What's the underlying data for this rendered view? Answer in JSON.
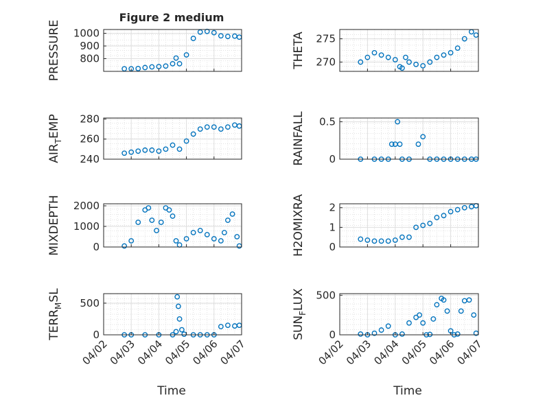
{
  "figure": {
    "title": "Figure 2 medium"
  },
  "x_axis": {
    "range": [
      "2019-04-02",
      "2019-04-07"
    ],
    "tick_labels": [
      "04/02",
      "04/03",
      "04/04",
      "04/05",
      "04/06",
      "04/07"
    ],
    "label": "Time"
  },
  "style": {
    "marker_color": "#0072BD",
    "marker": "open-circle",
    "grid": "dotted minor + solid major"
  },
  "chart_data": [
    {
      "type": "scatter",
      "name": "PRESSURE",
      "ylabel": "PRESSURE",
      "ylim": [
        700,
        1030
      ],
      "yticks": [
        800,
        900,
        1000
      ],
      "x": [
        "04/02 18:00",
        "04/03 00:00",
        "04/03 06:00",
        "04/03 12:00",
        "04/03 18:00",
        "04/04 00:00",
        "04/04 06:00",
        "04/04 12:00",
        "04/04 15:00",
        "04/04 18:00",
        "04/05 00:00",
        "04/05 06:00",
        "04/05 12:00",
        "04/05 18:00",
        "04/06 00:00",
        "04/06 06:00",
        "04/06 12:00",
        "04/06 18:00",
        "04/06 22:00"
      ],
      "y": [
        720,
        720,
        722,
        730,
        735,
        738,
        742,
        760,
        805,
        760,
        830,
        960,
        1010,
        1015,
        1005,
        980,
        975,
        978,
        970
      ]
    },
    {
      "type": "scatter",
      "name": "THETA",
      "ylabel": "THETA",
      "ylim": [
        268,
        277
      ],
      "yticks": [
        270,
        275
      ],
      "x": [
        "04/02 18:00",
        "04/03 00:00",
        "04/03 06:00",
        "04/03 12:00",
        "04/03 18:00",
        "04/04 00:00",
        "04/04 04:00",
        "04/04 06:00",
        "04/04 09:00",
        "04/04 12:00",
        "04/04 18:00",
        "04/05 00:00",
        "04/05 06:00",
        "04/05 12:00",
        "04/05 18:00",
        "04/06 00:00",
        "04/06 06:00",
        "04/06 12:00",
        "04/06 18:00",
        "04/06 22:00"
      ],
      "y": [
        270,
        271,
        272,
        271.5,
        271,
        270.5,
        269,
        268.7,
        271,
        270,
        269.5,
        269.2,
        270,
        271,
        271.5,
        272,
        273,
        275,
        276.5,
        275.8
      ]
    },
    {
      "type": "scatter",
      "name": "AIR_TEMP",
      "ylabel": "AIR",
      "ylim": [
        240,
        281
      ],
      "yticks": [
        240,
        260,
        280
      ],
      "x": [
        "04/02 18:00",
        "04/03 00:00",
        "04/03 06:00",
        "04/03 12:00",
        "04/03 18:00",
        "04/04 00:00",
        "04/04 06:00",
        "04/04 12:00",
        "04/04 18:00",
        "04/05 00:00",
        "04/05 06:00",
        "04/05 12:00",
        "04/05 18:00",
        "04/06 00:00",
        "04/06 06:00",
        "04/06 12:00",
        "04/06 18:00",
        "04/06 22:00"
      ],
      "y": [
        246,
        247,
        248,
        249,
        249,
        248,
        250,
        254,
        250,
        258,
        265,
        270,
        272,
        272,
        270,
        272,
        274,
        273
      ]
    },
    {
      "type": "scatter",
      "name": "RAINFALL",
      "ylabel": "RAINFALL",
      "ylim": [
        0,
        0.55
      ],
      "yticks": [
        0,
        0.5
      ],
      "x": [
        "04/02 18:00",
        "04/03 06:00",
        "04/03 12:00",
        "04/03 18:00",
        "04/03 21:00",
        "04/04 00:00",
        "04/04 02:00",
        "04/04 04:00",
        "04/04 06:00",
        "04/04 12:00",
        "04/04 20:00",
        "04/05 00:00",
        "04/05 06:00",
        "04/05 12:00",
        "04/05 18:00",
        "04/06 00:00",
        "04/06 06:00",
        "04/06 12:00",
        "04/06 18:00",
        "04/06 22:00"
      ],
      "y": [
        0,
        0,
        0,
        0,
        0.2,
        0.2,
        0.5,
        0.2,
        0,
        0,
        0.2,
        0.3,
        0,
        0,
        0,
        0,
        0,
        0,
        0,
        0
      ]
    },
    {
      "type": "scatter",
      "name": "MIXDEPTH",
      "ylabel": "MIXDEPTH",
      "ylim": [
        0,
        2100
      ],
      "yticks": [
        0,
        1000,
        2000
      ],
      "x": [
        "04/02 18:00",
        "04/03 00:00",
        "04/03 06:00",
        "04/03 12:00",
        "04/03 15:00",
        "04/03 18:00",
        "04/03 22:00",
        "04/04 02:00",
        "04/04 06:00",
        "04/04 09:00",
        "04/04 12:00",
        "04/04 15:00",
        "04/04 18:00",
        "04/05 00:00",
        "04/05 06:00",
        "04/05 12:00",
        "04/05 18:00",
        "04/06 00:00",
        "04/06 06:00",
        "04/06 09:00",
        "04/06 12:00",
        "04/06 16:00",
        "04/06 20:00",
        "04/06 22:00"
      ],
      "y": [
        50,
        300,
        1200,
        1800,
        1900,
        1300,
        800,
        1200,
        1900,
        1800,
        1500,
        300,
        100,
        400,
        700,
        800,
        600,
        400,
        300,
        700,
        1300,
        1600,
        500,
        50
      ]
    },
    {
      "type": "scatter",
      "name": "H2OMIXRA",
      "ylabel": "H2OMIXRA",
      "ylim": [
        0,
        2.2
      ],
      "yticks": [
        0,
        1,
        2
      ],
      "x": [
        "04/02 18:00",
        "04/03 00:00",
        "04/03 06:00",
        "04/03 12:00",
        "04/03 18:00",
        "04/04 00:00",
        "04/04 06:00",
        "04/04 12:00",
        "04/04 18:00",
        "04/05 00:00",
        "04/05 06:00",
        "04/05 12:00",
        "04/05 18:00",
        "04/06 00:00",
        "04/06 06:00",
        "04/06 12:00",
        "04/06 18:00",
        "04/06 22:00"
      ],
      "y": [
        0.4,
        0.35,
        0.3,
        0.3,
        0.3,
        0.35,
        0.5,
        0.5,
        1.0,
        1.1,
        1.2,
        1.5,
        1.6,
        1.8,
        1.9,
        2.0,
        2.05,
        2.1
      ]
    },
    {
      "type": "scatter",
      "name": "TERR_MSL",
      "ylabel": "TERR",
      "ylim": [
        0,
        650
      ],
      "yticks": [
        0,
        500
      ],
      "x": [
        "04/02 18:00",
        "04/03 00:00",
        "04/03 12:00",
        "04/04 00:00",
        "04/04 12:00",
        "04/04 15:00",
        "04/04 16:00",
        "04/04 17:00",
        "04/04 18:00",
        "04/04 20:00",
        "04/04 22:00",
        "04/05 06:00",
        "04/05 12:00",
        "04/05 18:00",
        "04/06 00:00",
        "04/06 06:00",
        "04/06 12:00",
        "04/06 18:00",
        "04/06 22:00"
      ],
      "y": [
        0,
        0,
        0,
        0,
        0,
        50,
        600,
        450,
        250,
        80,
        10,
        0,
        0,
        0,
        0,
        130,
        150,
        140,
        150
      ]
    },
    {
      "type": "scatter",
      "name": "SUN_FLUX",
      "ylabel": "SUN",
      "ylim": [
        0,
        520
      ],
      "yticks": [
        0,
        500
      ],
      "x": [
        "04/02 18:00",
        "04/03 00:00",
        "04/03 06:00",
        "04/03 12:00",
        "04/03 18:00",
        "04/04 00:00",
        "04/04 06:00",
        "04/04 12:00",
        "04/04 18:00",
        "04/04 21:00",
        "04/05 00:00",
        "04/05 03:00",
        "04/05 06:00",
        "04/05 09:00",
        "04/05 12:00",
        "04/05 16:00",
        "04/05 18:00",
        "04/05 21:00",
        "04/06 00:00",
        "04/06 03:00",
        "04/06 06:00",
        "04/06 09:00",
        "04/06 12:00",
        "04/06 16:00",
        "04/06 20:00",
        "04/06 22:00"
      ],
      "y": [
        10,
        0,
        20,
        60,
        110,
        0,
        10,
        150,
        220,
        250,
        150,
        0,
        5,
        200,
        380,
        460,
        440,
        300,
        50,
        0,
        10,
        300,
        430,
        440,
        250,
        20
      ]
    }
  ],
  "labels": {
    "air_temp": {
      "main": "AIR",
      "sub": "T",
      "rest": "EMP"
    },
    "terr_msl": {
      "main": "TERR",
      "sub": "M",
      "rest": "SL"
    },
    "sun_flux": {
      "main": "SUN",
      "sub": "F",
      "rest": "LUX"
    }
  }
}
